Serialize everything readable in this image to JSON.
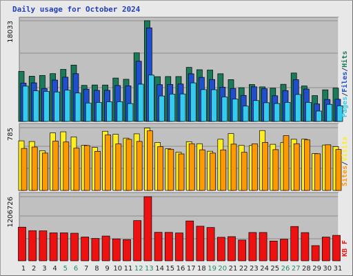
{
  "page": {
    "title": "Daily usage for October 2024"
  },
  "colors": {
    "pages": "#33ccee",
    "files": "#1f4fcc",
    "hits": "#1a7a5a",
    "visits": "#ffee22",
    "sites": "#ff9900",
    "kbytes": "#ee1111",
    "weekend_label": "#22886a",
    "day_label": "#1a1a1a",
    "ymax_label": "#111111"
  },
  "chart_data": [
    {
      "type": "bar",
      "panel": "top",
      "ymax_label": "18033",
      "ylim": [
        0,
        18033
      ],
      "categories": [
        "1",
        "2",
        "3",
        "4",
        "5",
        "6",
        "7",
        "8",
        "9",
        "10",
        "11",
        "12",
        "13",
        "14",
        "15",
        "16",
        "17",
        "18",
        "19",
        "20",
        "21",
        "22",
        "23",
        "24",
        "25",
        "26",
        "27",
        "28",
        "29",
        "30",
        "31"
      ],
      "weekend_days": [
        "5",
        "6",
        "12",
        "13",
        "19",
        "20",
        "26",
        "27"
      ],
      "side_label": [
        {
          "text": "Pages",
          "color": "#33ccee"
        },
        {
          "text": "/",
          "color": "#2c3e55"
        },
        {
          "text": "Files",
          "color": "#1f4fcc"
        },
        {
          "text": "/",
          "color": "#2c3e55"
        },
        {
          "text": "Hits",
          "color": "#1a7a5a"
        }
      ],
      "series": [
        {
          "name": "Hits",
          "values": [
            8960,
            8100,
            8240,
            8560,
            9320,
            10090,
            6460,
            6530,
            6520,
            7770,
            7550,
            12280,
            18033,
            8020,
            8040,
            8040,
            9680,
            9260,
            9200,
            8540,
            7490,
            6040,
            6610,
            6190,
            5950,
            6650,
            8670,
            6350,
            4630,
            5660,
            5970
          ]
        },
        {
          "name": "Files",
          "values": [
            6860,
            6910,
            5900,
            7410,
            7920,
            8550,
            5780,
            5570,
            5580,
            6430,
            6380,
            10780,
            16750,
            6580,
            6620,
            6700,
            8530,
            7890,
            7510,
            6140,
            5900,
            4660,
            6200,
            5860,
            4600,
            5520,
            7480,
            5800,
            3140,
            3930,
            3970
          ]
        },
        {
          "name": "Pages",
          "values": [
            6320,
            5480,
            5370,
            5280,
            5600,
            5090,
            3300,
            3400,
            3510,
            3540,
            3200,
            6670,
            8300,
            4560,
            4900,
            4920,
            6900,
            5700,
            5680,
            4380,
            4010,
            2750,
            3740,
            3350,
            3210,
            3410,
            4830,
            3410,
            1860,
            3060,
            2810
          ]
        }
      ]
    },
    {
      "type": "bar",
      "panel": "middle",
      "ymax_label": "785",
      "ylim": [
        0,
        785
      ],
      "side_label": [
        {
          "text": "Sites",
          "color": "#ff9900"
        },
        {
          "text": "/",
          "color": "#2c3e55"
        },
        {
          "text": "Visits",
          "color": "#ffee22"
        }
      ],
      "series": [
        {
          "name": "Visits",
          "values": [
            620,
            612,
            497,
            719,
            733,
            669,
            565,
            538,
            740,
            702,
            654,
            708,
            780,
            600,
            521,
            477,
            609,
            584,
            490,
            640,
            711,
            563,
            562,
            749,
            577,
            598,
            640,
            641,
            461,
            568,
            549
          ]
        },
        {
          "name": "Sites",
          "values": [
            525,
            543,
            467,
            617,
            606,
            529,
            561,
            489,
            694,
            582,
            639,
            613,
            745,
            548,
            515,
            457,
            583,
            508,
            467,
            507,
            579,
            477,
            583,
            601,
            510,
            685,
            584,
            632,
            459,
            571,
            512
          ]
        }
      ]
    },
    {
      "type": "bar",
      "panel": "bottom",
      "ymax_label": "1206726",
      "ylim": [
        0,
        1206726
      ],
      "side_label": [
        {
          "text": "KB F",
          "color": "#ee1111"
        }
      ],
      "series": [
        {
          "name": "KB F",
          "values": [
            633000,
            567000,
            564000,
            526000,
            526000,
            519000,
            448000,
            421000,
            466000,
            413000,
            399000,
            757000,
            1206726,
            536000,
            535000,
            524000,
            750000,
            651000,
            627000,
            443000,
            455000,
            391000,
            533000,
            533000,
            372000,
            406000,
            646000,
            531000,
            286000,
            447000,
            479000
          ]
        }
      ]
    }
  ]
}
